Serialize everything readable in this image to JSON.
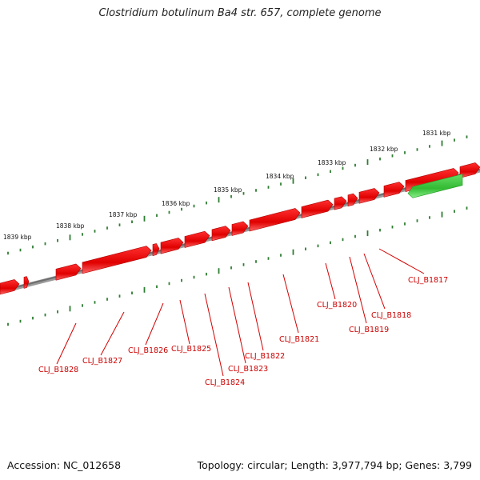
{
  "title": "Clostridium botulinum Ba4 str. 657, complete genome",
  "footer": {
    "accession": "Accession: NC_012658",
    "summary": "Topology: circular; Length: 3,977,794 bp; Genes: 3,799"
  },
  "colors": {
    "backbone": "#808080",
    "forward_gene": "#e00000",
    "reverse_gene": "#33cc33",
    "tick": "#2e7d32",
    "label_line": "#d40000"
  },
  "kbp_labels": [
    "1831 kbp",
    "1832 kbp",
    "1833 kbp",
    "1834 kbp",
    "1835 kbp",
    "1836 kbp",
    "1837 kbp",
    "1838 kbp",
    "1839 kbp"
  ],
  "gene_labels": [
    "CLJ_B1817",
    "CLJ_B1818",
    "CLJ_B1819",
    "CLJ_B1820",
    "CLJ_B1821",
    "CLJ_B1822",
    "CLJ_B1823",
    "CLJ_B1824",
    "CLJ_B1825",
    "CLJ_B1826",
    "CLJ_B1827",
    "CLJ_B1828"
  ]
}
